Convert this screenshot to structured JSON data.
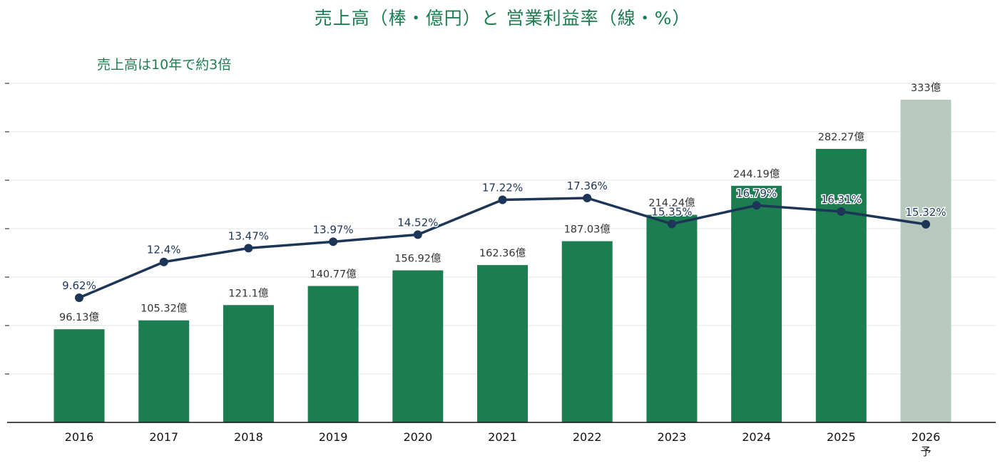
{
  "title": "売上高（棒・億円）と 営業利益率（線・%）",
  "annotation": "売上高は10年で約3倍",
  "chart_data": {
    "type": "bar+line",
    "categories": [
      "2016",
      "2017",
      "2018",
      "2019",
      "2020",
      "2021",
      "2022",
      "2023",
      "2024",
      "2025",
      "2026"
    ],
    "category_sublabels": [
      "",
      "",
      "",
      "",
      "",
      "",
      "",
      "",
      "",
      "",
      "予"
    ],
    "series": [
      {
        "kind": "bar",
        "values": [
          96.13,
          105.32,
          121.1,
          140.77,
          156.92,
          162.36,
          187.03,
          214.24,
          244.19,
          282.27,
          333
        ],
        "labels": [
          "96.13億",
          "105.32億",
          "121.1億",
          "140.77億",
          "156.92億",
          "162.36億",
          "187.03億",
          "214.24億",
          "244.19億",
          "282.27億",
          "333億"
        ],
        "forecast": [
          false,
          false,
          false,
          false,
          false,
          false,
          false,
          false,
          false,
          false,
          true
        ]
      },
      {
        "kind": "line",
        "values": [
          9.62,
          12.4,
          13.47,
          13.97,
          14.52,
          17.22,
          17.36,
          15.35,
          16.79,
          16.31,
          15.32
        ],
        "labels": [
          "9.62%",
          "12.4%",
          "13.47%",
          "13.97%",
          "14.52%",
          "17.22%",
          "17.36%",
          "15.35%",
          "16.79%",
          "16.31%",
          "15.32%"
        ]
      }
    ],
    "bar_axis_range": [
      0,
      350
    ],
    "line_axis_range": [
      0,
      27
    ],
    "grid": "horizontal",
    "colors": {
      "bar": "#1b7d50",
      "bar_forecast": "#b7c9bf",
      "line": "#1d3557",
      "title": "#1b7d50",
      "grid": "#e6e6e6",
      "axis": "#111111",
      "bar_label": "#333333"
    }
  }
}
